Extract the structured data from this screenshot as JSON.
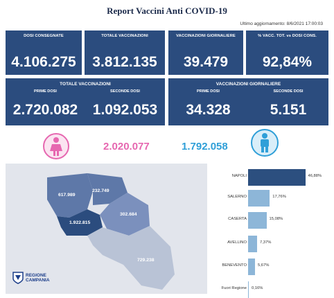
{
  "header": {
    "title": "Report Vaccini Anti COVID-19",
    "updated": "Ultimo aggiornamento: 8/6/2021 17:00:03"
  },
  "kpis": [
    {
      "label": "DOSI CONSEGNATE",
      "value": "4.106.275"
    },
    {
      "label": "TOTALE VACCINAZIONI",
      "value": "3.812.135"
    },
    {
      "label": "VACCINAZIONI GIORNALIERE",
      "value": "39.479"
    },
    {
      "label": "% VACC. TOT. vs DOSI CONS.",
      "value": "92,84%"
    }
  ],
  "totale": {
    "title": "TOTALE VACCINAZIONI",
    "prime_label": "PRIME DOSI",
    "prime_value": "2.720.082",
    "seconde_label": "SECONDE DOSI",
    "seconde_value": "1.092.053"
  },
  "giornaliere": {
    "title": "VACCINAZIONI GIORNALIERE",
    "prime_label": "PRIME DOSI",
    "prime_value": "34.328",
    "seconde_label": "SECONDE DOSI",
    "seconde_value": "5.151"
  },
  "gender": {
    "female_value": "2.020.077",
    "male_value": "1.792.058",
    "female_color": "#e667b0",
    "male_color": "#2f9fd8",
    "female_icon": "female-person-icon",
    "male_icon": "male-person-icon"
  },
  "map": {
    "provinces": [
      {
        "name": "Caserta",
        "value": "617.989"
      },
      {
        "name": "Benevento",
        "value": "232.749"
      },
      {
        "name": "Avellino",
        "value": "302.684"
      },
      {
        "name": "Napoli",
        "value": "1.922.815"
      },
      {
        "name": "Salerno",
        "value": "729.238"
      }
    ],
    "logo_line1": "REGIONE",
    "logo_line2": "CAMPANIA"
  },
  "chart_data": {
    "type": "bar",
    "orientation": "horizontal",
    "categories": [
      "NAPOLI",
      "SALERNO",
      "CASERTA",
      "AVELLINO",
      "BENEVENTO",
      "Fuori Regione"
    ],
    "values": [
      46.88,
      17.76,
      15.08,
      7.37,
      5.67,
      0.16
    ],
    "value_labels": [
      "46,88%",
      "17,76%",
      "15,08%",
      "7,37%",
      "5,67%",
      "0,16%"
    ],
    "colors": [
      "#2c4f7f",
      "#8db6d8",
      "#8db6d8",
      "#8db6d8",
      "#8db6d8",
      "#8db6d8"
    ],
    "xlim": [
      0,
      50
    ]
  }
}
